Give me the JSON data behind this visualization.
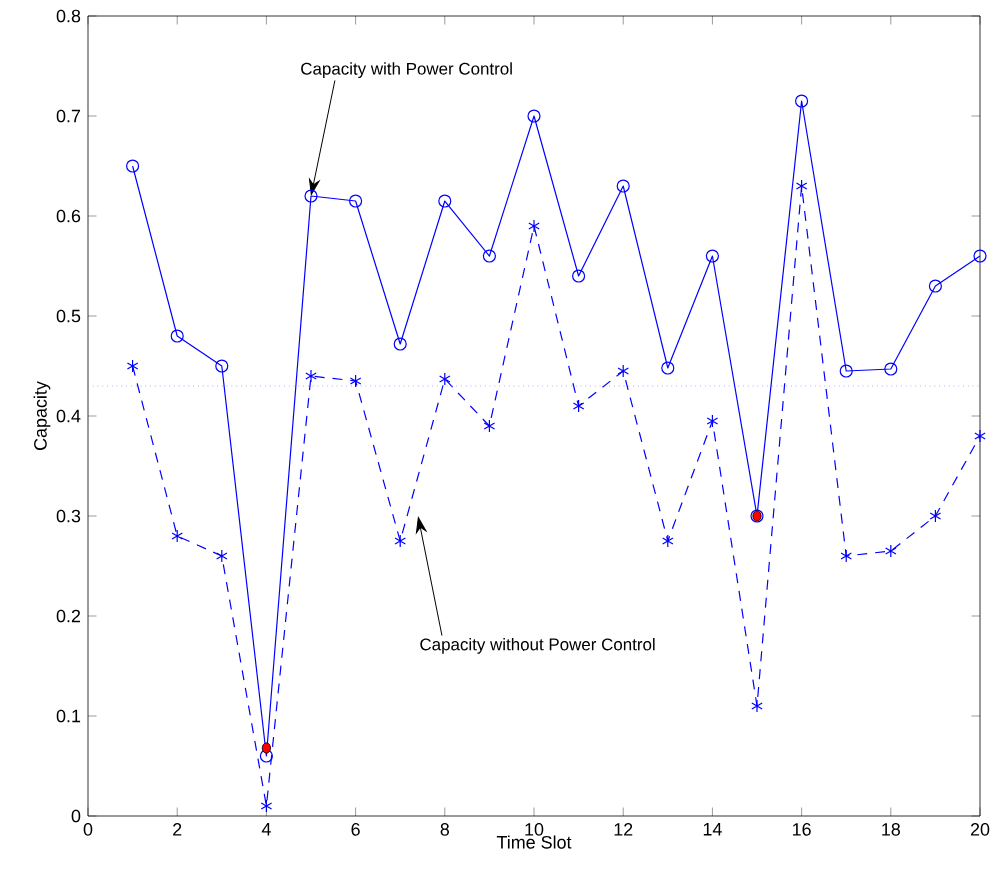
{
  "chart_data": {
    "type": "line",
    "xlabel": "Time Slot",
    "ylabel": "Capacity",
    "x": [
      1,
      2,
      3,
      4,
      5,
      6,
      7,
      8,
      9,
      10,
      11,
      12,
      13,
      14,
      15,
      16,
      17,
      18,
      19,
      20
    ],
    "xlim": [
      0,
      20
    ],
    "xticks": [
      0,
      2,
      4,
      6,
      8,
      10,
      12,
      14,
      16,
      18,
      20
    ],
    "ylim": [
      0,
      0.8
    ],
    "yticks": [
      0,
      0.1,
      0.2,
      0.3,
      0.4,
      0.5,
      0.6,
      0.7,
      0.8
    ],
    "grid": false,
    "series": [
      {
        "color": "#0000ff",
        "marker": "circle",
        "line_style": "solid",
        "values": [
          0.65,
          0.48,
          0.45,
          0.06,
          0.62,
          0.615,
          0.472,
          0.615,
          0.56,
          0.7,
          0.54,
          0.63,
          0.448,
          0.56,
          0.3,
          0.715,
          0.445,
          0.447,
          0.53,
          0.56
        ]
      },
      {
        "color": "#0000ff",
        "marker": "cross",
        "line_style": "dashed",
        "values": [
          0.45,
          0.28,
          0.26,
          0.01,
          0.44,
          0.435,
          0.275,
          0.437,
          0.39,
          0.59,
          0.41,
          0.445,
          0.275,
          0.395,
          0.11,
          0.63,
          0.26,
          0.265,
          0.3,
          0.38
        ]
      },
      {
        "type": "scatter",
        "color": "#ff0000",
        "marker": "circle",
        "x": [
          4,
          15
        ],
        "values": [
          0.068,
          0.3
        ]
      }
    ],
    "ref_lines": [
      {
        "axis": "y",
        "value": 0.43,
        "color": "#8080ff",
        "line_style": "dotted"
      }
    ],
    "annotations": [
      {
        "text": "Capacity with Power Control",
        "x": 5,
        "y": 0.62
      },
      {
        "text": "Capacity without Power Control",
        "x": 7.4,
        "y": 0.3
      }
    ]
  }
}
